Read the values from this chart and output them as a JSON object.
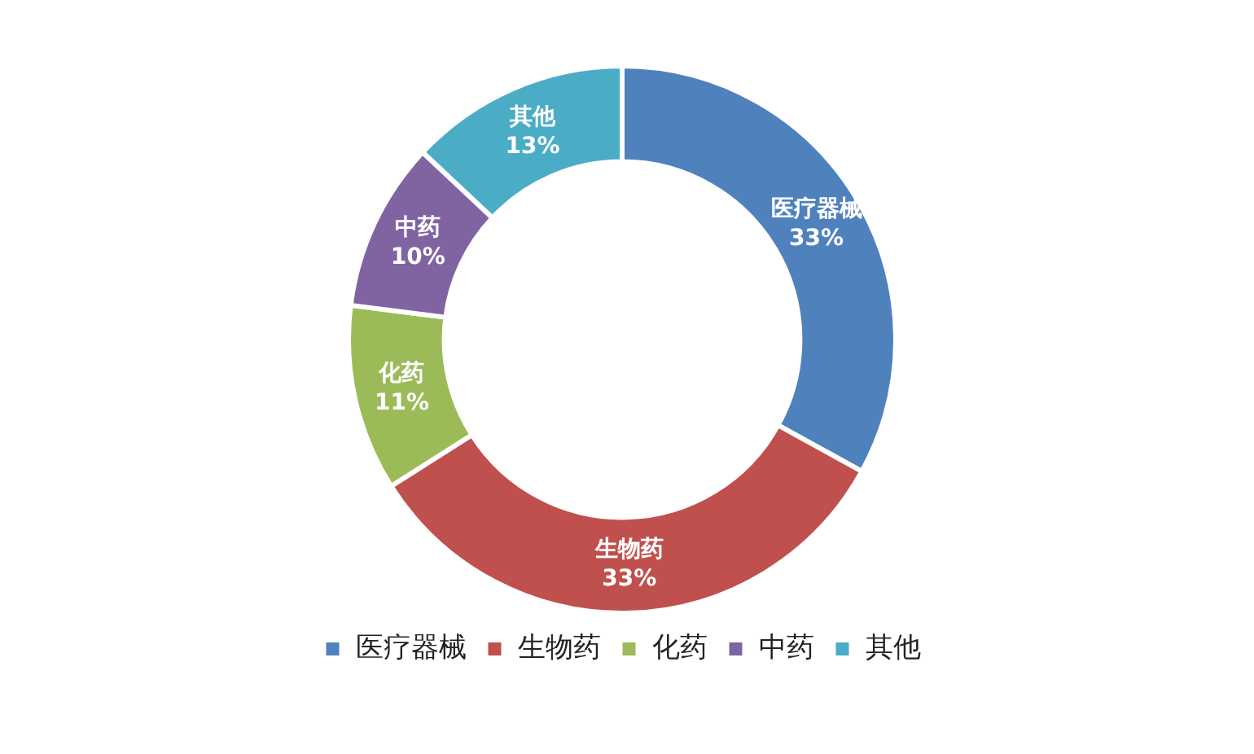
{
  "chart_data": {
    "type": "donut",
    "categories": [
      "医疗器械",
      "生物药",
      "化药",
      "中药",
      "其他"
    ],
    "values": [
      33,
      33,
      11,
      10,
      13
    ],
    "value_labels": [
      "33%",
      "33%",
      "11%",
      "10%",
      "13%"
    ],
    "colors": [
      "#4f81bd",
      "#c0504d",
      "#9bbb59",
      "#8064a2",
      "#4bacc6"
    ],
    "legend": "bottom"
  }
}
